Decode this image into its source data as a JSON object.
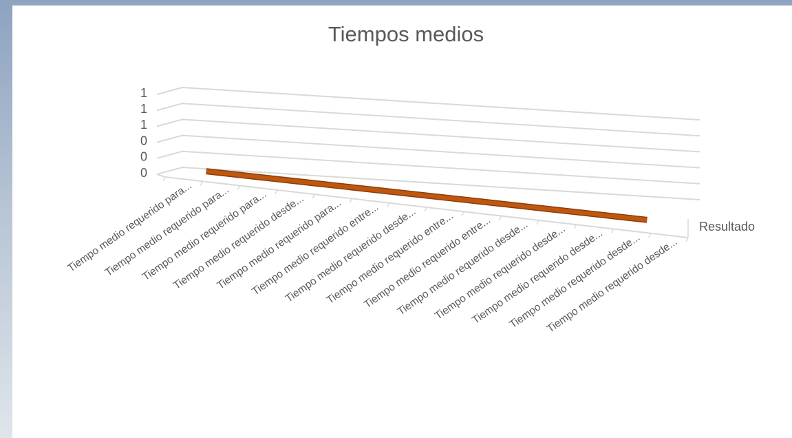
{
  "chart_data": {
    "type": "line",
    "title": "Tiempos medios",
    "categories": [
      "Tiempo medio requerido para...",
      "Tiempo medio requerido para...",
      "Tiempo medio requerido para...",
      "Tiempo medio requerido desde...",
      "Tiempo medio requerido para...",
      "Tiempo medio requerido entre...",
      "Tiempo medio requerido desde...",
      "Tiempo medio requerido entre...",
      "Tiempo medio requerido entre...",
      "Tiempo medio requerido desde...",
      "Tiempo medio requerido desde...",
      "Tiempo medio requerido desde...",
      "Tiempo medio requerido desde...",
      "Tiempo medio requerido desde..."
    ],
    "series": [
      {
        "name": "Resultado",
        "color": "#c55a11",
        "values": [
          0,
          0,
          0,
          0,
          0,
          0,
          0,
          0,
          0,
          0,
          0,
          0,
          0,
          0
        ]
      }
    ],
    "ylim": [
      0,
      1
    ],
    "yticks": [
      0,
      {
        "value": 0.2,
        "label": "0"
      },
      {
        "value": 0.4,
        "label": "0"
      },
      {
        "value": 0.6,
        "label": "1"
      },
      {
        "value": 0.8,
        "label": "1"
      },
      1
    ],
    "grid": true
  }
}
